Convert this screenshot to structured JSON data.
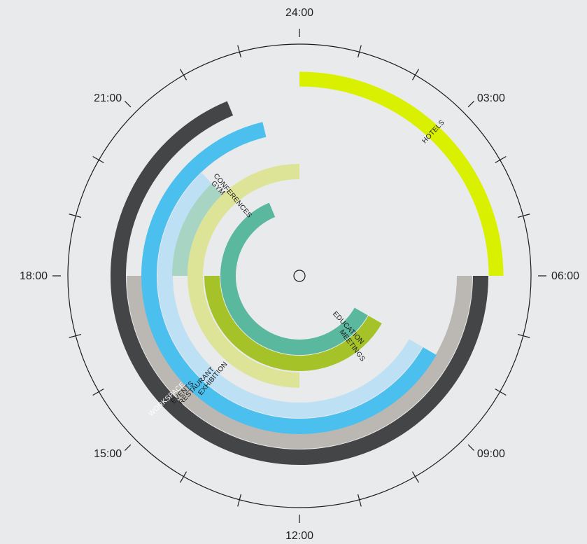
{
  "chart_data": {
    "type": "radial-arc",
    "title": "",
    "clock": {
      "hours": 24,
      "top_value": 24,
      "direction": "clockwise",
      "hour_labels": [
        "24:00",
        "03:00",
        "06:00",
        "09:00",
        "12:00",
        "15:00",
        "18:00",
        "21:00"
      ]
    },
    "series": [
      {
        "name": "HOTELS",
        "start": 0,
        "end": 6,
        "color": "#d9f100",
        "label_color": "#1a1a1a"
      },
      {
        "name": "GYM",
        "start": 18,
        "end": 21.1,
        "color": "#a8d4c4",
        "label_color": "#1a1a1a"
      },
      {
        "name": "CONFERENCES",
        "start": 12,
        "end": 24,
        "color": "#dde497",
        "label_color": "#1a1a1a"
      },
      {
        "name": "EDUCATION",
        "start": 8,
        "end": 22.5,
        "color": "#59b89d",
        "label_color": "#1a1a1a"
      },
      {
        "name": "MEETINGS",
        "start": 8,
        "end": 18,
        "color": "#a5c329",
        "label_color": "#1a1a1a"
      },
      {
        "name": "EXHIBITION",
        "start": 8,
        "end": 21.1,
        "color": "#bde0f5",
        "label_color": "#1a1a1a"
      },
      {
        "name": "RESTAURANT",
        "start": 8,
        "end": 23.1,
        "color": "#4bbfee",
        "label_color": "#1a1a1a"
      },
      {
        "name": "EVENTS",
        "start": 6,
        "end": 18,
        "color": "#bbb8b3",
        "label_color": "#1a1a1a"
      },
      {
        "name": "WORKSPACE",
        "start": 6,
        "end": 22.5,
        "color": "#444546",
        "label_color": "#ffffff"
      }
    ]
  }
}
